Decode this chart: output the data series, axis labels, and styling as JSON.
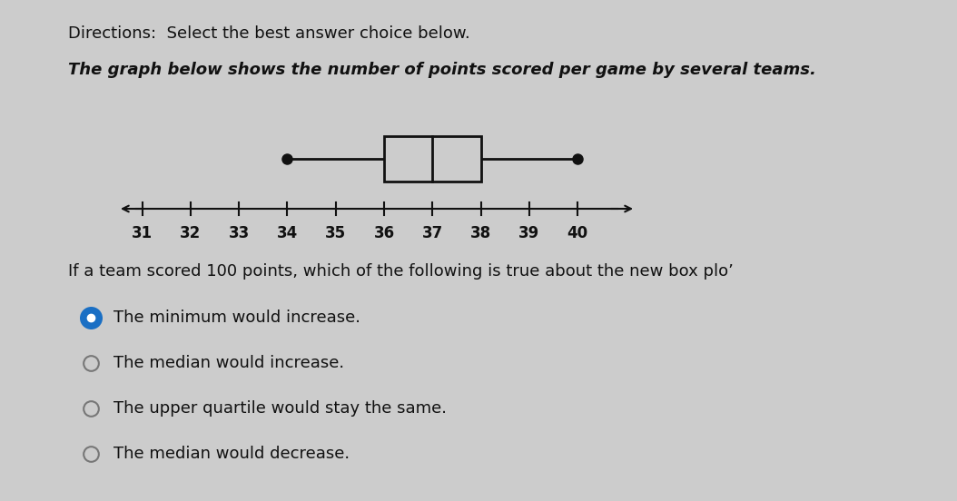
{
  "directions_text": "Directions:  Select the best answer choice below.",
  "description_text": "The graph below shows the number of points scored per game by several teams.",
  "question_text": "If a team scored 100 points, which of the following is true about the new box plo’",
  "boxplot": {
    "minimum": 34,
    "q1": 36,
    "median": 37,
    "q3": 38,
    "maximum": 40
  },
  "axis_min": 30.5,
  "axis_max": 41.2,
  "axis_ticks": [
    31,
    32,
    33,
    34,
    35,
    36,
    37,
    38,
    39,
    40
  ],
  "choices": [
    {
      "text": "The minimum would increase.",
      "selected": true
    },
    {
      "text": "The median would increase.",
      "selected": false
    },
    {
      "text": "The upper quartile would stay the same.",
      "selected": false
    },
    {
      "text": "The median would decrease.",
      "selected": false
    }
  ],
  "bg_color": "#cccccc",
  "text_color": "#111111",
  "box_color": "#111111",
  "selected_dot_color": "#1a6fc4",
  "unselected_ring_color": "#777777",
  "choice_text_color": "#111111",
  "fontsize_directions": 13,
  "fontsize_description": 13,
  "fontsize_question": 13,
  "fontsize_choices": 13,
  "fontsize_ticks": 12
}
